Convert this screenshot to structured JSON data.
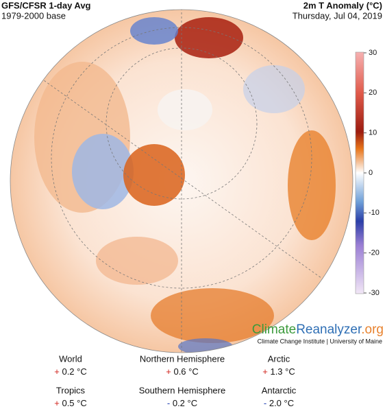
{
  "header": {
    "title": "GFS/CFSR 1-day Avg",
    "subtitle": "1979-2000 base",
    "variable": "2m T Anomaly (°C)",
    "date": "Thursday, Jul 04, 2019"
  },
  "colorbar": {
    "lim": [
      -30,
      30
    ],
    "ticks": [
      30,
      20,
      10,
      0,
      -10,
      -20,
      -30
    ]
  },
  "brand": {
    "parts": [
      "Climate",
      "Reanalyzer",
      ".org"
    ],
    "credit": "Climate Change Institute | University of Maine"
  },
  "stats": [
    {
      "name": "World",
      "sign": "+",
      "value": "0.2 °C"
    },
    {
      "name": "Northern Hemisphere",
      "sign": "+",
      "value": "0.6 °C"
    },
    {
      "name": "Arctic",
      "sign": "+",
      "value": "1.3 °C"
    },
    {
      "name": "Tropics",
      "sign": "+",
      "value": "0.5 °C"
    },
    {
      "name": "Southern Hemisphere",
      "sign": "-",
      "value": "0.2 °C"
    },
    {
      "name": "Antarctic",
      "sign": "-",
      "value": "2.0 °C"
    }
  ]
}
